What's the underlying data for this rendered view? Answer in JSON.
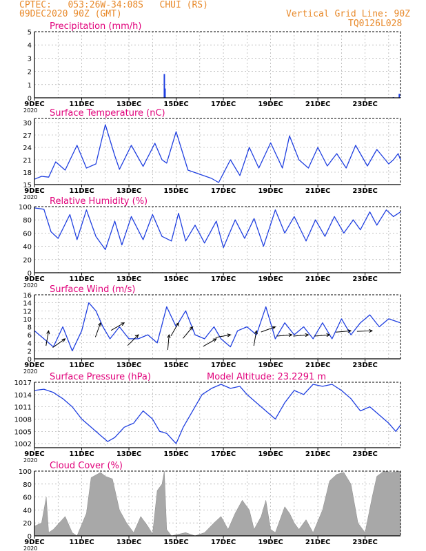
{
  "header": {
    "left_line1": "CPTEC:   053:26W-34:08S   CHUI (RS)",
    "left_line2": "09DEC2020 90Z (GMT)",
    "right_line1": "Vertical Grid Line: 90Z",
    "right_line2": "TQ0126L028"
  },
  "colors": {
    "header": "#e8892a",
    "title": "#e0007a",
    "series": "#1f3fe0",
    "cloud": "#a8a8a8",
    "arrow": "#000000",
    "grid": "#9a9a9a"
  },
  "model_altitude": "Model Altitude: 23.2291 m",
  "x_tick_labels": [
    "9DEC",
    "11DEC",
    "13DEC",
    "15DEC",
    "17DEC",
    "19DEC",
    "21DEC",
    "23DEC"
  ],
  "x_year_label": "2020",
  "chart_data": [
    {
      "type": "bar",
      "title": "Precipitation (mm/h)",
      "ylim": [
        0,
        5
      ],
      "yticks": [
        0,
        1,
        2,
        3,
        4,
        5
      ],
      "x_range": [
        0,
        15.5
      ],
      "bars": [
        [
          5.5,
          1.8
        ],
        [
          5.53,
          0.7
        ],
        [
          10.2,
          0.03
        ],
        [
          10.9,
          0.03
        ],
        [
          15.2,
          0.05
        ],
        [
          15.45,
          0.3
        ]
      ]
    },
    {
      "type": "line",
      "title": "Surface Temperature (nC)",
      "ylim": [
        15,
        31
      ],
      "yticks": [
        15,
        18,
        21,
        24,
        27,
        30
      ],
      "x_range": [
        0,
        15.5
      ],
      "points": [
        [
          0,
          16.3
        ],
        [
          0.3,
          17
        ],
        [
          0.6,
          16.8
        ],
        [
          0.9,
          20.5
        ],
        [
          1.3,
          18.5
        ],
        [
          1.8,
          24.5
        ],
        [
          2.2,
          19
        ],
        [
          2.6,
          20
        ],
        [
          3,
          29.5
        ],
        [
          3.4,
          22
        ],
        [
          3.6,
          18.7
        ],
        [
          4.1,
          24.5
        ],
        [
          4.6,
          19.4
        ],
        [
          5.1,
          25
        ],
        [
          5.4,
          21
        ],
        [
          5.6,
          20.2
        ],
        [
          6,
          27.8
        ],
        [
          6.5,
          18.5
        ],
        [
          7,
          17.5
        ],
        [
          7.5,
          16.5
        ],
        [
          7.8,
          15.5
        ],
        [
          8.3,
          21
        ],
        [
          8.7,
          17.2
        ],
        [
          9.1,
          24
        ],
        [
          9.5,
          19
        ],
        [
          10,
          25.1
        ],
        [
          10.5,
          19
        ],
        [
          10.8,
          26.8
        ],
        [
          11.2,
          21
        ],
        [
          11.6,
          19
        ],
        [
          12,
          24
        ],
        [
          12.4,
          19.5
        ],
        [
          12.8,
          22.5
        ],
        [
          13.2,
          19
        ],
        [
          13.6,
          24.5
        ],
        [
          14.1,
          19.5
        ],
        [
          14.5,
          23.5
        ],
        [
          15,
          20
        ],
        [
          15.2,
          21
        ],
        [
          15.4,
          22.5
        ],
        [
          15.5,
          21
        ]
      ]
    },
    {
      "type": "line",
      "title": "Relative Humidity (%)",
      "ylim": [
        0,
        100
      ],
      "yticks": [
        0,
        20,
        40,
        60,
        80,
        100
      ],
      "x_range": [
        0,
        15.5
      ],
      "points": [
        [
          0,
          98
        ],
        [
          0.4,
          96
        ],
        [
          0.7,
          62
        ],
        [
          1,
          52
        ],
        [
          1.5,
          88
        ],
        [
          1.8,
          50
        ],
        [
          2.2,
          95
        ],
        [
          2.6,
          55
        ],
        [
          3,
          35
        ],
        [
          3.4,
          78
        ],
        [
          3.7,
          42
        ],
        [
          4.1,
          85
        ],
        [
          4.6,
          50
        ],
        [
          5,
          88
        ],
        [
          5.4,
          55
        ],
        [
          5.8,
          48
        ],
        [
          6.1,
          90
        ],
        [
          6.4,
          48
        ],
        [
          6.8,
          72
        ],
        [
          7.2,
          45
        ],
        [
          7.7,
          78
        ],
        [
          8,
          38
        ],
        [
          8.5,
          80
        ],
        [
          8.9,
          52
        ],
        [
          9.3,
          82
        ],
        [
          9.7,
          40
        ],
        [
          10.2,
          95
        ],
        [
          10.6,
          60
        ],
        [
          11,
          85
        ],
        [
          11.5,
          48
        ],
        [
          11.9,
          80
        ],
        [
          12.3,
          55
        ],
        [
          12.7,
          85
        ],
        [
          13.1,
          60
        ],
        [
          13.5,
          80
        ],
        [
          13.8,
          65
        ],
        [
          14.2,
          92
        ],
        [
          14.5,
          72
        ],
        [
          14.9,
          95
        ],
        [
          15.2,
          85
        ],
        [
          15.5,
          92
        ]
      ]
    },
    {
      "type": "line",
      "title": "Surface Wind (m/s)",
      "ylim": [
        0,
        16
      ],
      "yticks": [
        0,
        2,
        4,
        6,
        8,
        10,
        12,
        14,
        16
      ],
      "x_range": [
        0,
        15.5
      ],
      "points": [
        [
          0,
          7
        ],
        [
          0.4,
          5
        ],
        [
          0.8,
          3
        ],
        [
          1.2,
          8
        ],
        [
          1.6,
          2
        ],
        [
          2,
          7
        ],
        [
          2.3,
          14
        ],
        [
          2.6,
          12
        ],
        [
          2.9,
          8
        ],
        [
          3.2,
          5
        ],
        [
          3.6,
          8
        ],
        [
          4,
          5
        ],
        [
          4.4,
          5
        ],
        [
          4.8,
          6
        ],
        [
          5.2,
          4
        ],
        [
          5.6,
          13
        ],
        [
          6,
          8
        ],
        [
          6.4,
          12
        ],
        [
          6.8,
          6
        ],
        [
          7.2,
          5
        ],
        [
          7.6,
          8
        ],
        [
          7.9,
          5
        ],
        [
          8.3,
          3
        ],
        [
          8.6,
          7
        ],
        [
          9,
          8
        ],
        [
          9.4,
          6
        ],
        [
          9.8,
          13
        ],
        [
          10.2,
          5
        ],
        [
          10.6,
          9
        ],
        [
          11,
          6
        ],
        [
          11.4,
          8
        ],
        [
          11.8,
          5
        ],
        [
          12.2,
          9
        ],
        [
          12.6,
          5
        ],
        [
          13,
          10
        ],
        [
          13.4,
          6
        ],
        [
          13.8,
          9
        ],
        [
          14.2,
          11
        ],
        [
          14.6,
          8
        ],
        [
          15,
          10
        ],
        [
          15.5,
          9
        ]
      ],
      "arrows": [
        [
          0.6,
          7,
          -100
        ],
        [
          1.3,
          5,
          -145
        ],
        [
          2.8,
          9,
          -110
        ],
        [
          3.8,
          9,
          -150
        ],
        [
          4.4,
          6,
          -135
        ],
        [
          5.7,
          6,
          -95
        ],
        [
          6.1,
          9,
          -120
        ],
        [
          6.7,
          8,
          -130
        ],
        [
          7.7,
          5,
          -150
        ],
        [
          8.3,
          6,
          -170
        ],
        [
          9.4,
          7,
          -100
        ],
        [
          10.2,
          8,
          -160
        ],
        [
          10.9,
          6,
          -175
        ],
        [
          11.6,
          6,
          -175
        ],
        [
          12.5,
          6,
          -175
        ],
        [
          13.4,
          7,
          -175
        ],
        [
          14.3,
          7,
          -178
        ]
      ]
    },
    {
      "type": "line",
      "title": "Surface Pressure (hPa)",
      "ylim": [
        1001,
        1017
      ],
      "yticks": [
        1002,
        1005,
        1008,
        1011,
        1014,
        1017
      ],
      "x_range": [
        0,
        15.5
      ],
      "points": [
        [
          0,
          1015
        ],
        [
          0.4,
          1015.3
        ],
        [
          0.8,
          1014.5
        ],
        [
          1.2,
          1013
        ],
        [
          1.6,
          1011
        ],
        [
          2,
          1008
        ],
        [
          2.4,
          1006
        ],
        [
          2.8,
          1004
        ],
        [
          3.1,
          1002.5
        ],
        [
          3.4,
          1003.5
        ],
        [
          3.8,
          1006
        ],
        [
          4.2,
          1007
        ],
        [
          4.6,
          1010
        ],
        [
          5,
          1008
        ],
        [
          5.3,
          1005
        ],
        [
          5.6,
          1004.5
        ],
        [
          6,
          1002
        ],
        [
          6.3,
          1006
        ],
        [
          6.7,
          1010
        ],
        [
          7.1,
          1014
        ],
        [
          7.5,
          1015.5
        ],
        [
          7.9,
          1016.5
        ],
        [
          8.3,
          1015.5
        ],
        [
          8.7,
          1016
        ],
        [
          9,
          1014
        ],
        [
          9.4,
          1012
        ],
        [
          9.8,
          1010
        ],
        [
          10.2,
          1008
        ],
        [
          10.6,
          1012
        ],
        [
          11,
          1015
        ],
        [
          11.4,
          1014
        ],
        [
          11.8,
          1016.5
        ],
        [
          12.2,
          1016
        ],
        [
          12.6,
          1016.5
        ],
        [
          13,
          1015
        ],
        [
          13.4,
          1013
        ],
        [
          13.8,
          1010
        ],
        [
          14.2,
          1011
        ],
        [
          14.6,
          1009
        ],
        [
          15,
          1007
        ],
        [
          15.3,
          1005
        ],
        [
          15.5,
          1006.5
        ]
      ]
    },
    {
      "type": "area",
      "title": "Cloud Cover (%)",
      "ylim": [
        0,
        100
      ],
      "yticks": [
        0,
        20,
        40,
        60,
        80,
        100
      ],
      "x_range": [
        0,
        15.5
      ],
      "points": [
        [
          0,
          15
        ],
        [
          0.3,
          20
        ],
        [
          0.5,
          60
        ],
        [
          0.6,
          5
        ],
        [
          0.8,
          10
        ],
        [
          1.1,
          22
        ],
        [
          1.3,
          30
        ],
        [
          1.6,
          5
        ],
        [
          1.8,
          0
        ],
        [
          2.2,
          35
        ],
        [
          2.4,
          90
        ],
        [
          2.8,
          98
        ],
        [
          3,
          92
        ],
        [
          3.3,
          88
        ],
        [
          3.6,
          40
        ],
        [
          3.9,
          20
        ],
        [
          4.2,
          5
        ],
        [
          4.5,
          30
        ],
        [
          4.8,
          15
        ],
        [
          5,
          3
        ],
        [
          5.2,
          70
        ],
        [
          5.4,
          80
        ],
        [
          5.5,
          100
        ],
        [
          5.6,
          10
        ],
        [
          5.8,
          0
        ],
        [
          6.4,
          5
        ],
        [
          6.8,
          0
        ],
        [
          7.2,
          5
        ],
        [
          7.6,
          20
        ],
        [
          7.9,
          30
        ],
        [
          8.2,
          10
        ],
        [
          8.5,
          35
        ],
        [
          8.8,
          55
        ],
        [
          9.1,
          40
        ],
        [
          9.3,
          10
        ],
        [
          9.6,
          30
        ],
        [
          9.8,
          55
        ],
        [
          10,
          10
        ],
        [
          10.2,
          5
        ],
        [
          10.6,
          45
        ],
        [
          10.8,
          35
        ],
        [
          11,
          20
        ],
        [
          11.2,
          10
        ],
        [
          11.5,
          25
        ],
        [
          11.8,
          5
        ],
        [
          12.2,
          40
        ],
        [
          12.5,
          85
        ],
        [
          12.8,
          95
        ],
        [
          13.1,
          98
        ],
        [
          13.4,
          80
        ],
        [
          13.7,
          20
        ],
        [
          14,
          5
        ],
        [
          14.3,
          60
        ],
        [
          14.5,
          92
        ],
        [
          14.8,
          100
        ],
        [
          15.1,
          98
        ],
        [
          15.5,
          100
        ]
      ]
    }
  ]
}
